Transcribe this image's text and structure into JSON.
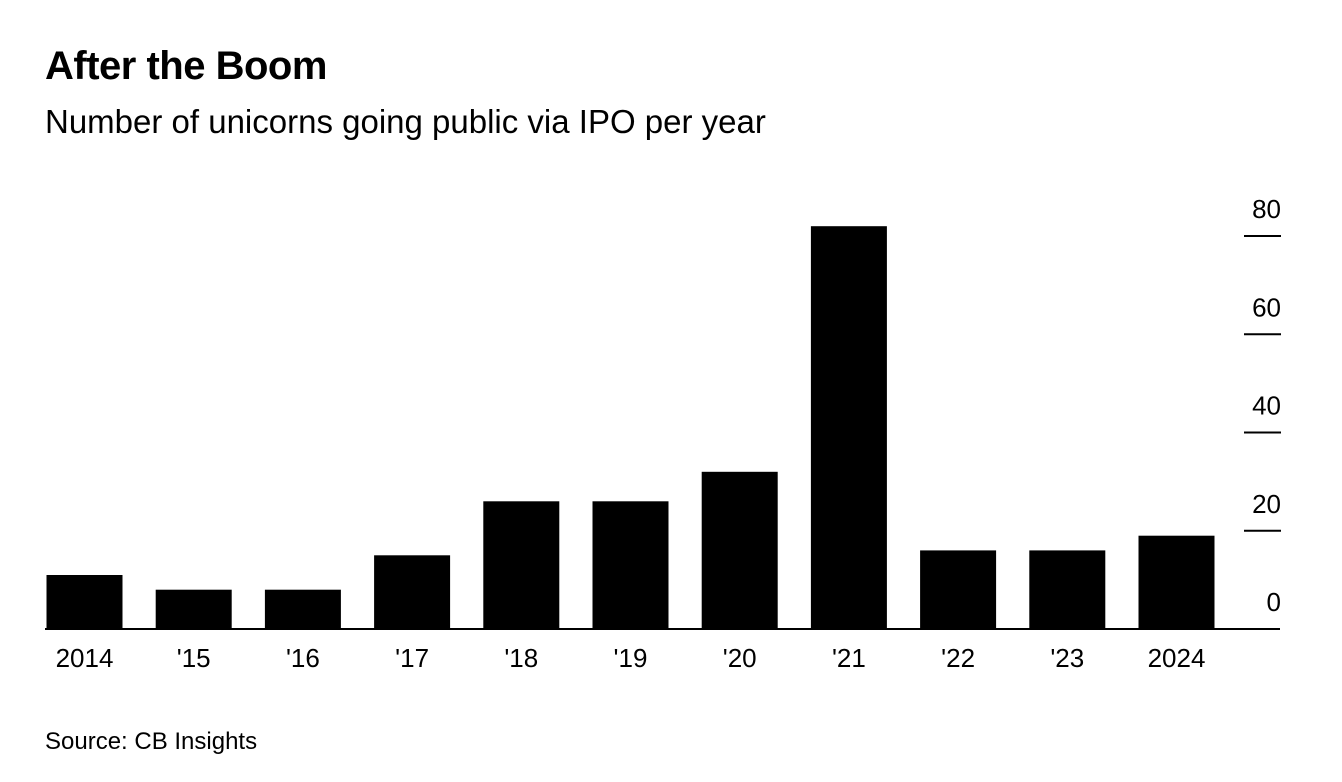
{
  "title": "After the Boom",
  "subtitle": "Number of unicorns going public via IPO per year",
  "source": "Source: CB Insights",
  "colors": {
    "bar": "#000000",
    "axis": "#000000",
    "background": "#ffffff"
  },
  "chart_data": {
    "type": "bar",
    "title": "After the Boom",
    "subtitle": "Number of unicorns going public via IPO per year",
    "categories": [
      "2014",
      "'15",
      "'16",
      "'17",
      "'18",
      "'19",
      "'20",
      "'21",
      "'22",
      "'23",
      "2024"
    ],
    "values": [
      11,
      8,
      8,
      15,
      26,
      26,
      32,
      82,
      16,
      16,
      19
    ],
    "xlabel": "",
    "ylabel": "",
    "ylim": [
      0,
      80
    ],
    "yticks": [
      0,
      20,
      40,
      60,
      80
    ],
    "ytick_labels": [
      "0",
      "20",
      "40",
      "60",
      "80"
    ],
    "y_axis_position": "right",
    "grid": false,
    "legend": "none"
  }
}
